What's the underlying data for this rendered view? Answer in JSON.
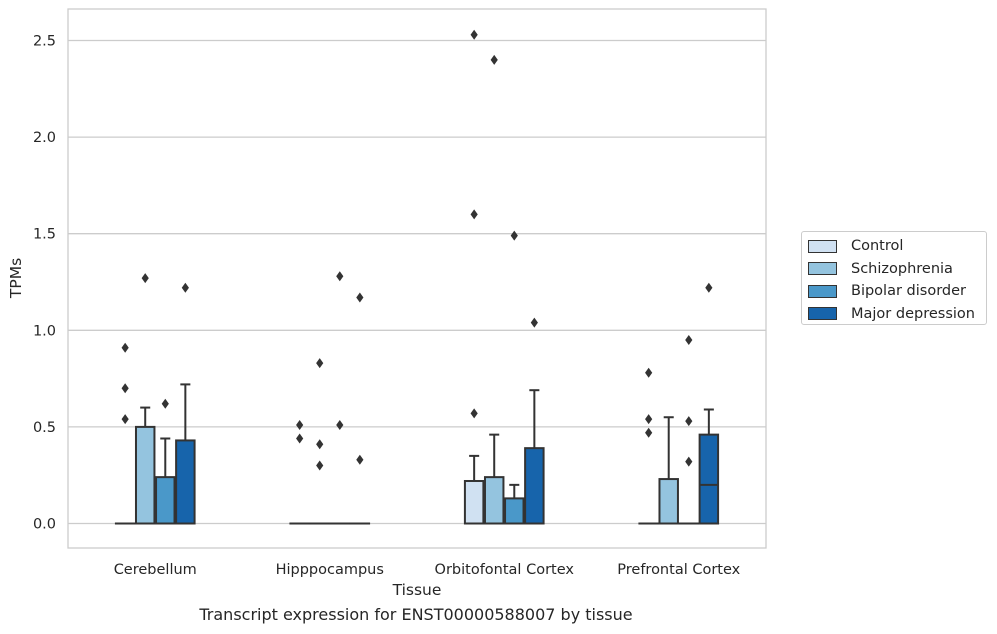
{
  "caption": "Transcript expression for ENST00000588007 by tissue",
  "chart_data": {
    "type": "box",
    "xlabel": "Tissue",
    "ylabel": "TPMs",
    "ylim": [
      -0.12,
      2.66
    ],
    "yticks": [
      0.0,
      0.5,
      1.0,
      1.5,
      2.0,
      2.5
    ],
    "ytick_labels": [
      "0.0",
      "0.5",
      "1.0",
      "1.5",
      "2.0",
      "2.5"
    ],
    "categories": [
      "Cerebellum",
      "Hipppocampus",
      "Orbitofontal Cortex",
      "Prefrontal Cortex"
    ],
    "grid": "horizontal",
    "legend_position": "right",
    "series": [
      {
        "name": "Control",
        "color": "#d0e1f2",
        "boxes": [
          {
            "q1": 0,
            "median": 0,
            "q3": 0,
            "whisker_low": 0,
            "whisker_high": 0,
            "outliers": [
              0.91,
              0.7,
              0.54
            ]
          },
          {
            "q1": 0,
            "median": 0,
            "q3": 0,
            "whisker_low": 0,
            "whisker_high": 0,
            "outliers": [
              0.51,
              0.44
            ]
          },
          {
            "q1": 0,
            "median": 0,
            "q3": 0.22,
            "whisker_low": 0,
            "whisker_high": 0.35,
            "outliers": [
              2.53,
              1.6,
              0.57
            ]
          },
          {
            "q1": 0,
            "median": 0,
            "q3": 0,
            "whisker_low": 0,
            "whisker_high": 0,
            "outliers": [
              0.78,
              0.54,
              0.47
            ]
          }
        ]
      },
      {
        "name": "Schizophrenia",
        "color": "#94c4df",
        "boxes": [
          {
            "q1": 0,
            "median": 0,
            "q3": 0.5,
            "whisker_low": 0,
            "whisker_high": 0.6,
            "outliers": [
              1.27
            ]
          },
          {
            "q1": 0,
            "median": 0,
            "q3": 0,
            "whisker_low": 0,
            "whisker_high": 0,
            "outliers": [
              0.83,
              0.41,
              0.3
            ]
          },
          {
            "q1": 0,
            "median": 0,
            "q3": 0.24,
            "whisker_low": 0,
            "whisker_high": 0.46,
            "outliers": [
              2.4
            ]
          },
          {
            "q1": 0,
            "median": 0,
            "q3": 0.23,
            "whisker_low": 0,
            "whisker_high": 0.55,
            "outliers": []
          }
        ]
      },
      {
        "name": "Bipolar disorder",
        "color": "#4a98c9",
        "boxes": [
          {
            "q1": 0,
            "median": 0,
            "q3": 0.24,
            "whisker_low": 0,
            "whisker_high": 0.44,
            "outliers": [
              0.62
            ]
          },
          {
            "q1": 0,
            "median": 0,
            "q3": 0,
            "whisker_low": 0,
            "whisker_high": 0,
            "outliers": [
              1.28,
              0.51
            ]
          },
          {
            "q1": 0,
            "median": 0,
            "q3": 0.13,
            "whisker_low": 0,
            "whisker_high": 0.2,
            "outliers": [
              1.49
            ]
          },
          {
            "q1": 0,
            "median": 0,
            "q3": 0,
            "whisker_low": 0,
            "whisker_high": 0,
            "outliers": [
              0.95,
              0.53,
              0.32
            ]
          }
        ]
      },
      {
        "name": "Major depression",
        "color": "#1764ab",
        "boxes": [
          {
            "q1": 0,
            "median": 0,
            "q3": 0.43,
            "whisker_low": 0,
            "whisker_high": 0.72,
            "outliers": [
              1.22
            ]
          },
          {
            "q1": 0,
            "median": 0,
            "q3": 0,
            "whisker_low": 0,
            "whisker_high": 0,
            "outliers": [
              1.17,
              0.33
            ]
          },
          {
            "q1": 0,
            "median": 0,
            "q3": 0.39,
            "whisker_low": 0,
            "whisker_high": 0.69,
            "outliers": [
              1.04
            ]
          },
          {
            "q1": 0,
            "median": 0.2,
            "q3": 0.46,
            "whisker_low": 0,
            "whisker_high": 0.59,
            "outliers": [
              1.22
            ]
          }
        ]
      }
    ]
  }
}
